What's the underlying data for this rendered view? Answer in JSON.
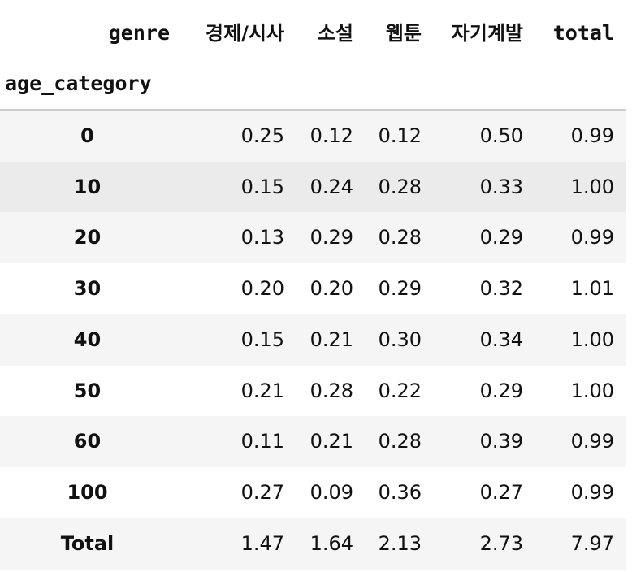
{
  "header": {
    "columns_name": "genre",
    "columns": [
      "경제/시사",
      "소설",
      "웹툰",
      "자기계발",
      "total"
    ],
    "index_name": "age_category"
  },
  "table": {
    "rows": [
      [
        "0",
        "0.25",
        "0.12",
        "0.12",
        "0.50",
        "0.99"
      ],
      [
        "10",
        "0.15",
        "0.24",
        "0.28",
        "0.33",
        "1.00"
      ],
      [
        "20",
        "0.13",
        "0.29",
        "0.28",
        "0.29",
        "0.99"
      ],
      [
        "30",
        "0.20",
        "0.20",
        "0.29",
        "0.32",
        "1.01"
      ],
      [
        "40",
        "0.15",
        "0.21",
        "0.30",
        "0.34",
        "1.00"
      ],
      [
        "50",
        "0.21",
        "0.28",
        "0.22",
        "0.29",
        "1.00"
      ],
      [
        "60",
        "0.11",
        "0.21",
        "0.28",
        "0.39",
        "0.99"
      ],
      [
        "100",
        "0.27",
        "0.09",
        "0.36",
        "0.27",
        "0.99"
      ],
      [
        "Total",
        "1.47",
        "1.64",
        "2.13",
        "2.73",
        "7.97"
      ]
    ]
  }
}
